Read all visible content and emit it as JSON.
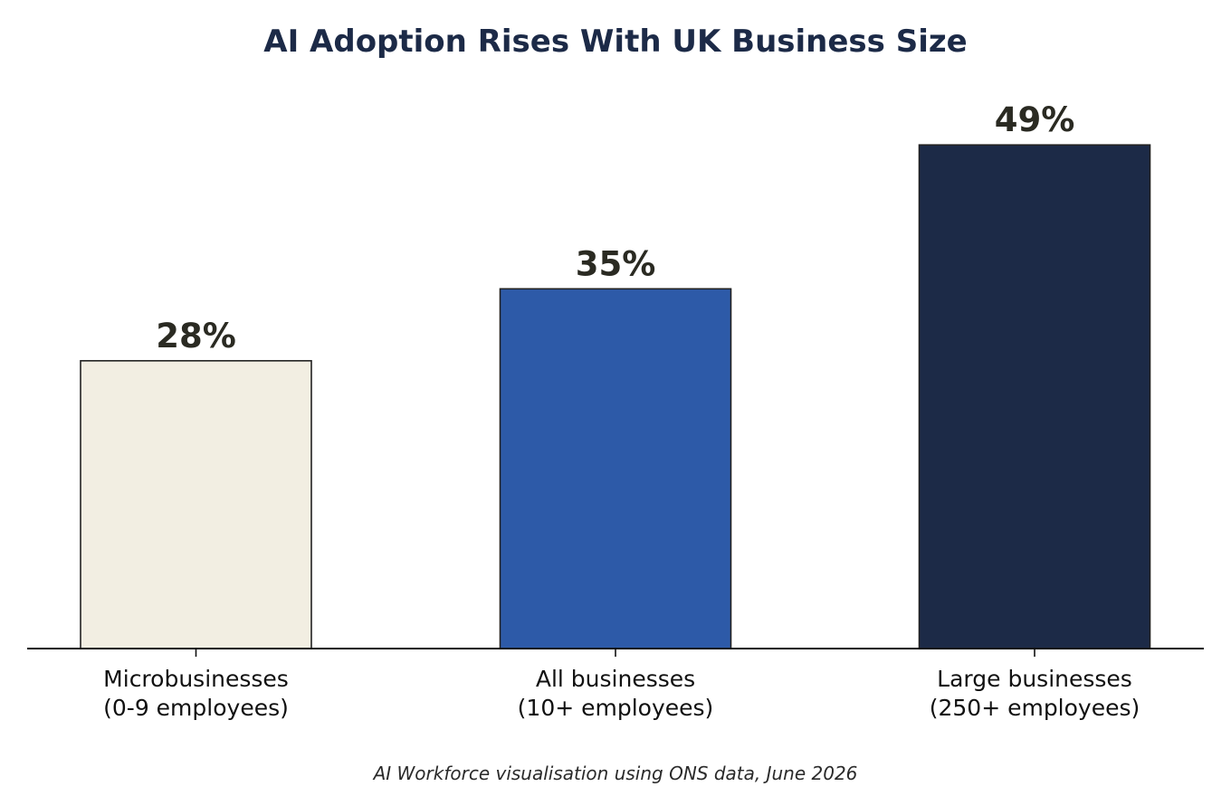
{
  "chart_data": {
    "type": "bar",
    "title": "AI Adoption Rises With UK Business Size",
    "categories": [
      [
        "Microbusinesses",
        "(0-9 employees)"
      ],
      [
        "All businesses",
        "(10+ employees)"
      ],
      [
        "Large businesses",
        "(250+ employees)"
      ]
    ],
    "values": [
      28,
      35,
      49
    ],
    "value_labels": [
      "28%",
      "35%",
      "49%"
    ],
    "ylim": [
      0,
      56.5
    ],
    "grid": false,
    "legend": "none",
    "bar_colors": [
      "#f2eee2",
      "#2d5aa8",
      "#1c2a47"
    ],
    "bar_edge_color": "#222222",
    "title_color": "#1c2a47",
    "label_color": "#2a2a22"
  },
  "footer": {
    "source": "AI Workforce visualisation using ONS data, June 2026"
  }
}
